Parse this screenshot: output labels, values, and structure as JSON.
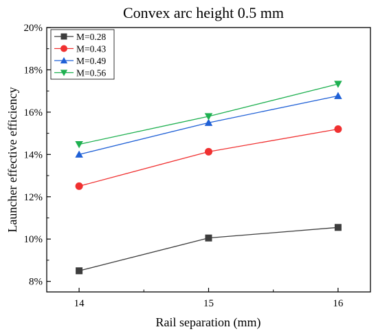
{
  "chart_data": {
    "type": "line",
    "title": "Convex arc height 0.5 mm",
    "xlabel": "Rail separation (mm)",
    "ylabel": "Launcher effective efficiency",
    "x": [
      14,
      15,
      16
    ],
    "x_ticks": [
      "14",
      "15",
      "16"
    ],
    "y_ticks": [
      "8%",
      "10%",
      "12%",
      "14%",
      "16%",
      "18%",
      "20%"
    ],
    "xlim": [
      13.75,
      16.25
    ],
    "ylim": [
      7.5,
      20
    ],
    "y_unit": "%",
    "grid": false,
    "legend_position": "top-left",
    "series": [
      {
        "name": "M=0.28",
        "values": [
          8.5,
          10.05,
          10.55
        ],
        "color": "#3d3d3d",
        "marker": "square"
      },
      {
        "name": "M=0.43",
        "values": [
          12.5,
          14.13,
          15.2
        ],
        "color": "#f03030",
        "marker": "circle"
      },
      {
        "name": "M=0.49",
        "values": [
          14.0,
          15.5,
          16.77
        ],
        "color": "#1f60d6",
        "marker": "triangle-up"
      },
      {
        "name": "M=0.56",
        "values": [
          14.48,
          15.8,
          17.33
        ],
        "color": "#1eb050",
        "marker": "triangle-down"
      }
    ]
  }
}
